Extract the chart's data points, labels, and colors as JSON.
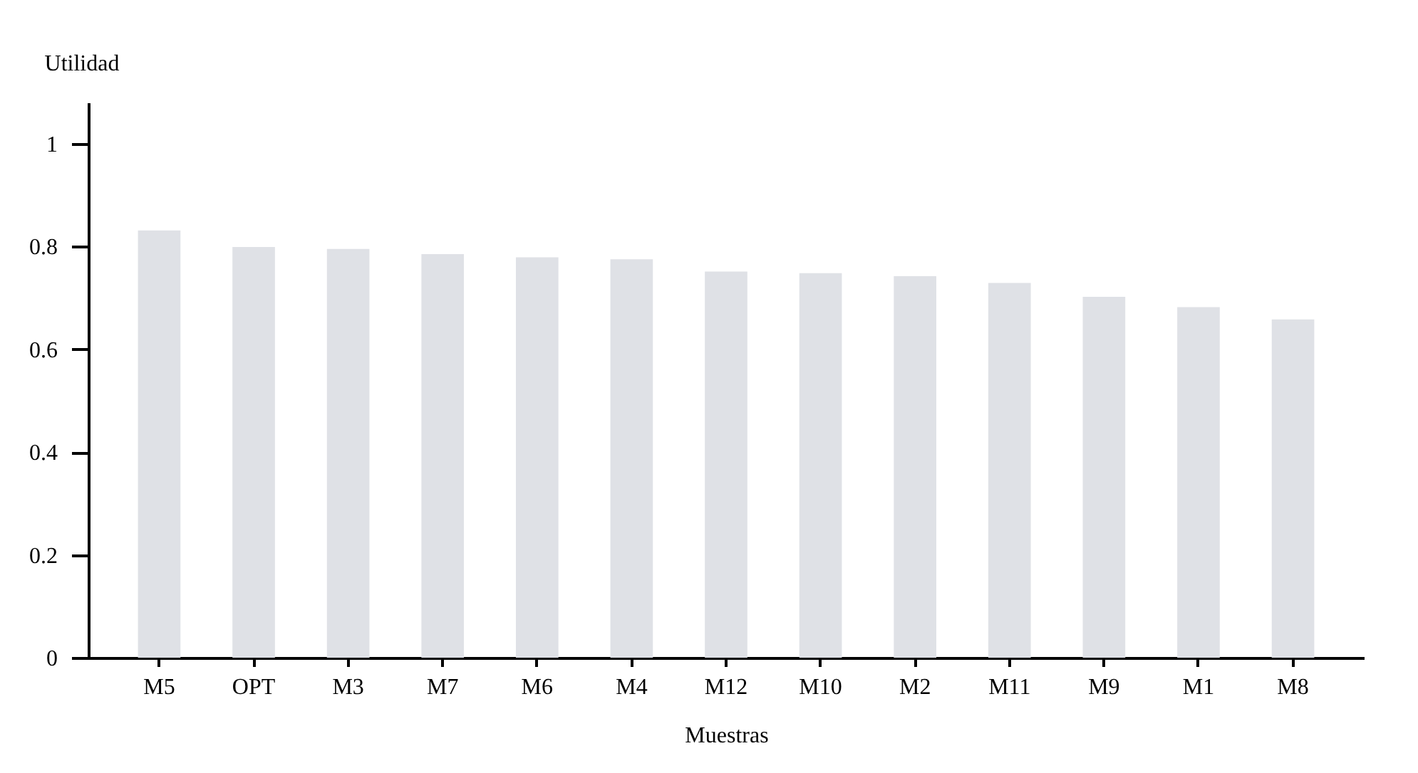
{
  "chart_data": {
    "type": "bar",
    "xlabel": "Muestras",
    "ylabel": "Utilidad",
    "categories": [
      "M5",
      "OPT",
      "M3",
      "M7",
      "M6",
      "M4",
      "M12",
      "M10",
      "M2",
      "M11",
      "M9",
      "M1",
      "M8"
    ],
    "values": [
      0.831,
      0.799,
      0.795,
      0.785,
      0.779,
      0.775,
      0.751,
      0.748,
      0.742,
      0.729,
      0.702,
      0.682,
      0.658
    ],
    "color": "#dfe1e6",
    "ylim": [
      0,
      1.08
    ],
    "yticks": [
      0,
      0.2,
      0.4,
      0.6,
      0.8,
      1
    ],
    "grid": false
  }
}
